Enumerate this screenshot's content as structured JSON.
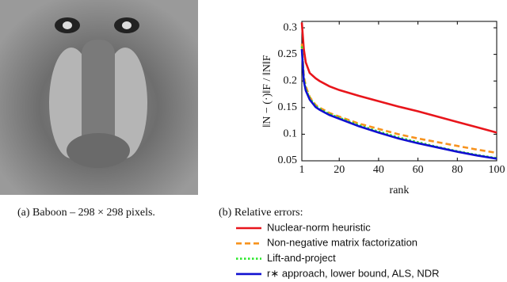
{
  "figure_a": {
    "caption": "(a) Baboon – 298 × 298 pixels."
  },
  "chart_data": {
    "type": "line",
    "caption": "(b) Relative errors:",
    "y_label": "‖N − (·)‖F / ‖N‖F",
    "x_label": "rank",
    "x": [
      1,
      2,
      3,
      5,
      8,
      10,
      15,
      20,
      30,
      40,
      50,
      60,
      70,
      80,
      90,
      100
    ],
    "xlim": [
      1,
      100
    ],
    "xticks": [
      1,
      20,
      40,
      60,
      80,
      100
    ],
    "ylim": [
      0.05,
      0.312
    ],
    "yticks": [
      0.05,
      0.1,
      0.15,
      0.2,
      0.25,
      0.3
    ],
    "series": [
      {
        "name": "Nuclear-norm heuristic",
        "color": "#e8151b",
        "dash": "solid",
        "values": [
          0.31,
          0.26,
          0.235,
          0.215,
          0.205,
          0.2,
          0.19,
          0.183,
          0.172,
          0.162,
          0.152,
          0.143,
          0.133,
          0.123,
          0.113,
          0.103
        ]
      },
      {
        "name": "Non-negative matrix factorization",
        "color": "#f7931e",
        "dash": "dashed",
        "values": [
          0.27,
          0.21,
          0.19,
          0.17,
          0.155,
          0.15,
          0.14,
          0.133,
          0.12,
          0.11,
          0.1,
          0.092,
          0.085,
          0.078,
          0.071,
          0.065
        ]
      },
      {
        "name": "Lift-and-project",
        "color": "#2ee82e",
        "dash": "dotted",
        "values": [
          0.265,
          0.205,
          0.185,
          0.168,
          0.153,
          0.148,
          0.138,
          0.131,
          0.117,
          0.105,
          0.094,
          0.085,
          0.076,
          0.068,
          0.061,
          0.055
        ]
      },
      {
        "name": "r∗ approach, lower bound, ALS, NDR",
        "color": "#1010d0",
        "dash": "solid",
        "values": [
          0.26,
          0.2,
          0.182,
          0.165,
          0.151,
          0.146,
          0.136,
          0.129,
          0.115,
          0.103,
          0.092,
          0.083,
          0.075,
          0.067,
          0.06,
          0.054
        ]
      }
    ]
  }
}
